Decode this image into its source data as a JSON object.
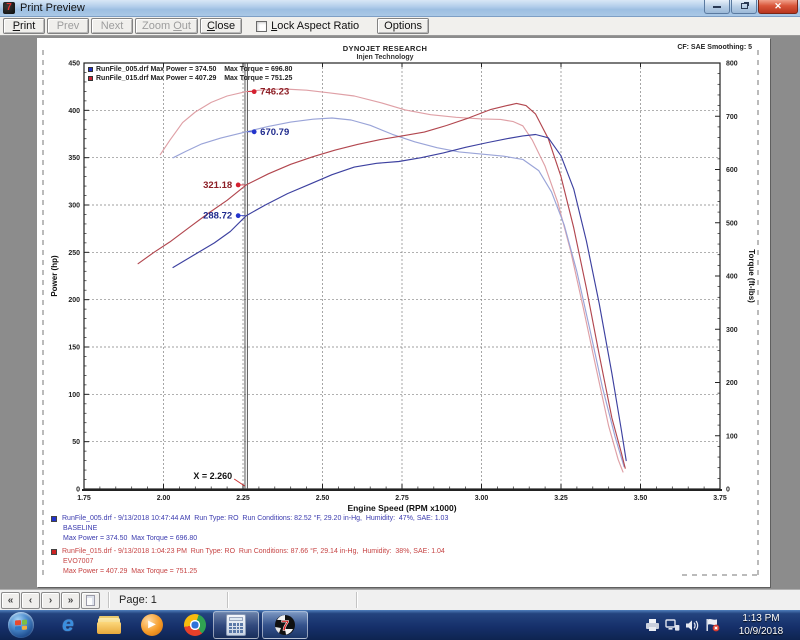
{
  "window": {
    "title": "Print Preview"
  },
  "toolbar": {
    "print": "Print",
    "prev": "Prev",
    "next": "Next",
    "zoom_out": "Zoom Out",
    "close": "Close",
    "lock_aspect": "Lock Aspect Ratio",
    "options": "Options"
  },
  "page_header": {
    "company": "DYNOJET RESEARCH",
    "subtitle": "Injen Technology",
    "correction": "CF: SAE   Smoothing: 5"
  },
  "legend": {
    "rows": [
      {
        "color": "#2233cc",
        "file_power": "RunFile_005.drf Max Power = 374.50",
        "torque": "Max Torque = 696.80"
      },
      {
        "color": "#cc2233",
        "file_power": "RunFile_015.drf Max Power = 407.29",
        "torque": "Max Torque = 751.25"
      }
    ]
  },
  "annotations": {
    "runs": [
      {
        "square": "#2233cc",
        "text_color": "#3a3aae",
        "line1": "RunFile_005.drf - 9/13/2018 10:47:44 AM  Run Type: RO  Run Conditions: 82.52 °F, 29.20 in-Hg,  Humidity:  47%, SAE: 1.03",
        "line2": "BASELINE",
        "line3": "Max Power = 374.50  Max Torque = 696.80"
      },
      {
        "square": "#cc2222",
        "text_color": "#c64444",
        "line1": "RunFile_015.drf - 9/13/2018 1:04:23 PM  Run Type: RO  Run Conditions: 87.66 °F, 29.14 in-Hg,  Humidity:  38%, SAE: 1.04",
        "line2": "EVO7007",
        "line3": "Max Power = 407.29  Max Torque = 751.25"
      }
    ]
  },
  "statusbar": {
    "page_label": "Page: 1"
  },
  "taskbar": {
    "time": "1:13 PM",
    "date": "10/9/2018"
  },
  "chart_data": {
    "type": "line",
    "title": "DYNOJET RESEARCH",
    "xlabel": "Engine Speed (RPM x1000)",
    "ylabel_left": "Power (hp)",
    "ylabel_right": "Torque (ft-lbs)",
    "xlim": [
      1.75,
      3.75
    ],
    "ylim_left": [
      0,
      450
    ],
    "ylim_right": [
      0,
      800
    ],
    "x_tick_labels": [
      "1.75",
      "2.00",
      "2.25",
      "2.50",
      "2.75",
      "3.00",
      "3.25",
      "3.50",
      "3.75"
    ],
    "grid": true,
    "cursor": {
      "rpm": 2.26,
      "label": "X = 2.260",
      "pointer_color": "#cc3333"
    },
    "markers": [
      {
        "text": "746.23",
        "value": 746.23,
        "axis": "right",
        "side": "right",
        "dot": "#d42030",
        "color": "#8d1f26"
      },
      {
        "text": "670.79",
        "value": 670.79,
        "axis": "right",
        "side": "right",
        "dot": "#2435cc",
        "color": "#1f2a8d"
      },
      {
        "text": "321.18",
        "value": 321.18,
        "axis": "left",
        "side": "left",
        "dot": "#d42030",
        "color": "#8d1f26"
      },
      {
        "text": "288.72",
        "value": 288.72,
        "axis": "left",
        "side": "left",
        "dot": "#2435cc",
        "color": "#1f2a8d"
      }
    ],
    "series": [
      {
        "name": "torque_red",
        "axis": "right",
        "color": "#dfa0a6",
        "points": [
          [
            1.99,
            628
          ],
          [
            2.02,
            655
          ],
          [
            2.06,
            688
          ],
          [
            2.1,
            708
          ],
          [
            2.15,
            726
          ],
          [
            2.2,
            738
          ],
          [
            2.26,
            746.2
          ],
          [
            2.32,
            750
          ],
          [
            2.38,
            751.25
          ],
          [
            2.45,
            749
          ],
          [
            2.52,
            744
          ],
          [
            2.6,
            738
          ],
          [
            2.68,
            726
          ],
          [
            2.76,
            712
          ],
          [
            2.84,
            703
          ],
          [
            2.92,
            698
          ],
          [
            3.0,
            695
          ],
          [
            3.06,
            694
          ],
          [
            3.1,
            690
          ],
          [
            3.13,
            682
          ],
          [
            3.16,
            655
          ],
          [
            3.2,
            606
          ],
          [
            3.24,
            538
          ],
          [
            3.28,
            448
          ],
          [
            3.32,
            340
          ],
          [
            3.36,
            228
          ],
          [
            3.4,
            118
          ],
          [
            3.43,
            55
          ],
          [
            3.445,
            32
          ]
        ]
      },
      {
        "name": "torque_blue",
        "axis": "right",
        "color": "#9aa4d8",
        "points": [
          [
            2.03,
            622
          ],
          [
            2.07,
            634
          ],
          [
            2.12,
            648
          ],
          [
            2.18,
            659
          ],
          [
            2.26,
            670.8
          ],
          [
            2.33,
            681
          ],
          [
            2.4,
            689
          ],
          [
            2.47,
            694.5
          ],
          [
            2.53,
            696.8
          ],
          [
            2.59,
            693
          ],
          [
            2.65,
            683
          ],
          [
            2.72,
            666
          ],
          [
            2.79,
            652
          ],
          [
            2.86,
            641
          ],
          [
            2.93,
            633
          ],
          [
            3.0,
            629
          ],
          [
            3.07,
            625
          ],
          [
            3.13,
            619
          ],
          [
            3.18,
            598
          ],
          [
            3.22,
            558
          ],
          [
            3.26,
            496
          ],
          [
            3.3,
            408
          ],
          [
            3.34,
            302
          ],
          [
            3.38,
            192
          ],
          [
            3.42,
            98
          ],
          [
            3.448,
            42
          ]
        ]
      },
      {
        "name": "power_red",
        "axis": "left",
        "color": "#b2474f",
        "points": [
          [
            1.92,
            238
          ],
          [
            1.97,
            250
          ],
          [
            2.02,
            261
          ],
          [
            2.08,
            276
          ],
          [
            2.14,
            291
          ],
          [
            2.2,
            305
          ],
          [
            2.26,
            321.2
          ],
          [
            2.33,
            333
          ],
          [
            2.4,
            343
          ],
          [
            2.47,
            351
          ],
          [
            2.54,
            358
          ],
          [
            2.61,
            364
          ],
          [
            2.68,
            369
          ],
          [
            2.75,
            373
          ],
          [
            2.82,
            377
          ],
          [
            2.89,
            384
          ],
          [
            2.96,
            392
          ],
          [
            3.03,
            401
          ],
          [
            3.08,
            405
          ],
          [
            3.11,
            407.29
          ],
          [
            3.14,
            405
          ],
          [
            3.17,
            396
          ],
          [
            3.21,
            370
          ],
          [
            3.25,
            330
          ],
          [
            3.29,
            276
          ],
          [
            3.33,
            212
          ],
          [
            3.37,
            142
          ],
          [
            3.41,
            75
          ],
          [
            3.44,
            38
          ],
          [
            3.452,
            22
          ]
        ]
      },
      {
        "name": "power_blue",
        "axis": "left",
        "color": "#3d41a0",
        "points": [
          [
            2.03,
            234
          ],
          [
            2.09,
            246
          ],
          [
            2.16,
            260
          ],
          [
            2.21,
            272
          ],
          [
            2.26,
            288.7
          ],
          [
            2.32,
            300
          ],
          [
            2.39,
            312
          ],
          [
            2.46,
            322
          ],
          [
            2.53,
            332
          ],
          [
            2.6,
            340
          ],
          [
            2.67,
            344
          ],
          [
            2.74,
            346
          ],
          [
            2.81,
            350
          ],
          [
            2.88,
            355
          ],
          [
            2.95,
            361
          ],
          [
            3.02,
            366
          ],
          [
            3.08,
            370
          ],
          [
            3.13,
            373
          ],
          [
            3.17,
            374.5
          ],
          [
            3.21,
            371
          ],
          [
            3.25,
            352
          ],
          [
            3.29,
            317
          ],
          [
            3.33,
            262
          ],
          [
            3.37,
            196
          ],
          [
            3.41,
            122
          ],
          [
            3.44,
            62
          ],
          [
            3.455,
            30
          ]
        ]
      }
    ]
  }
}
